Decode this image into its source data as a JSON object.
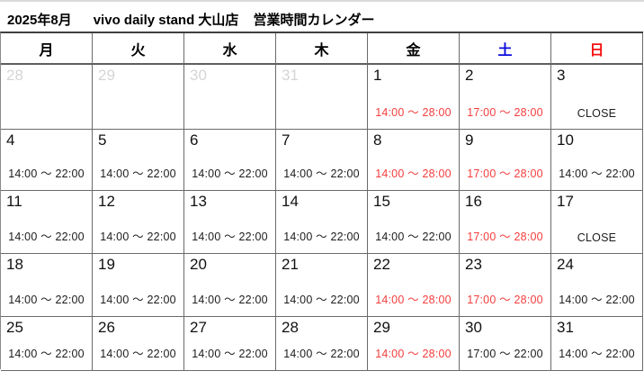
{
  "header": {
    "month_title": "2025年8月",
    "store_name": "vivo daily stand 大山店",
    "calendar_label": "営業時間カレンダー"
  },
  "calendar": {
    "weekday_headers": [
      {
        "label": "月",
        "color": "#000000"
      },
      {
        "label": "火",
        "color": "#000000"
      },
      {
        "label": "水",
        "color": "#000000"
      },
      {
        "label": "木",
        "color": "#000000"
      },
      {
        "label": "金",
        "color": "#000000"
      },
      {
        "label": "土",
        "color": "#0b0bdd"
      },
      {
        "label": "日",
        "color": "#f51111"
      }
    ],
    "colors": {
      "special_hours_text": "#f43d3d",
      "regular_hours_text": "#1c1c1c",
      "muted_day_text": "#d5d5d5",
      "day_text": "#111111"
    },
    "weeks": [
      [
        {
          "day": "28",
          "muted": true,
          "hours": ""
        },
        {
          "day": "29",
          "muted": true,
          "hours": ""
        },
        {
          "day": "30",
          "muted": true,
          "hours": ""
        },
        {
          "day": "31",
          "muted": true,
          "hours": ""
        },
        {
          "day": "1",
          "hours": "14:00 ～ 28:00",
          "special": true
        },
        {
          "day": "2",
          "hours": "17:00 ～ 28:00",
          "special": true
        },
        {
          "day": "3",
          "hours": "CLOSE"
        }
      ],
      [
        {
          "day": "4",
          "hours": "14:00 ～ 22:00"
        },
        {
          "day": "5",
          "hours": "14:00 ～ 22:00"
        },
        {
          "day": "6",
          "hours": "14:00 ～ 22:00"
        },
        {
          "day": "7",
          "hours": "14:00 ～ 22:00"
        },
        {
          "day": "8",
          "hours": "14:00 ～ 28:00",
          "special": true
        },
        {
          "day": "9",
          "hours": "17:00 ～ 28:00",
          "special": true
        },
        {
          "day": "10",
          "hours": "14:00 ～ 22:00"
        }
      ],
      [
        {
          "day": "11",
          "hours": "14:00 ～ 22:00"
        },
        {
          "day": "12",
          "hours": "14:00 ～ 22:00"
        },
        {
          "day": "13",
          "hours": "14:00 ～ 22:00"
        },
        {
          "day": "14",
          "hours": "14:00 ～ 22:00"
        },
        {
          "day": "15",
          "hours": "14:00 ～ 22:00"
        },
        {
          "day": "16",
          "hours": "17:00 ～ 28:00",
          "special": true
        },
        {
          "day": "17",
          "hours": "CLOSE"
        }
      ],
      [
        {
          "day": "18",
          "hours": "14:00 ～ 22:00"
        },
        {
          "day": "19",
          "hours": "14:00 ～ 22:00"
        },
        {
          "day": "20",
          "hours": "14:00 ～ 22:00"
        },
        {
          "day": "21",
          "hours": "14:00 ～ 22:00"
        },
        {
          "day": "22",
          "hours": "14:00 ～ 28:00",
          "special": true
        },
        {
          "day": "23",
          "hours": "17:00 ～ 28:00",
          "special": true
        },
        {
          "day": "24",
          "hours": "14:00 ～ 22:00"
        }
      ],
      [
        {
          "day": "25",
          "hours": "14:00 ～ 22:00"
        },
        {
          "day": "26",
          "hours": "14:00 ～ 22:00"
        },
        {
          "day": "27",
          "hours": "14:00 ～ 22:00"
        },
        {
          "day": "28",
          "hours": "14:00 ～ 22:00"
        },
        {
          "day": "29",
          "hours": "14:00 ～ 28:00",
          "special": true
        },
        {
          "day": "30",
          "hours": "17:00 ～ 22:00"
        },
        {
          "day": "31",
          "hours": "14:00 ～ 22:00"
        }
      ]
    ]
  }
}
